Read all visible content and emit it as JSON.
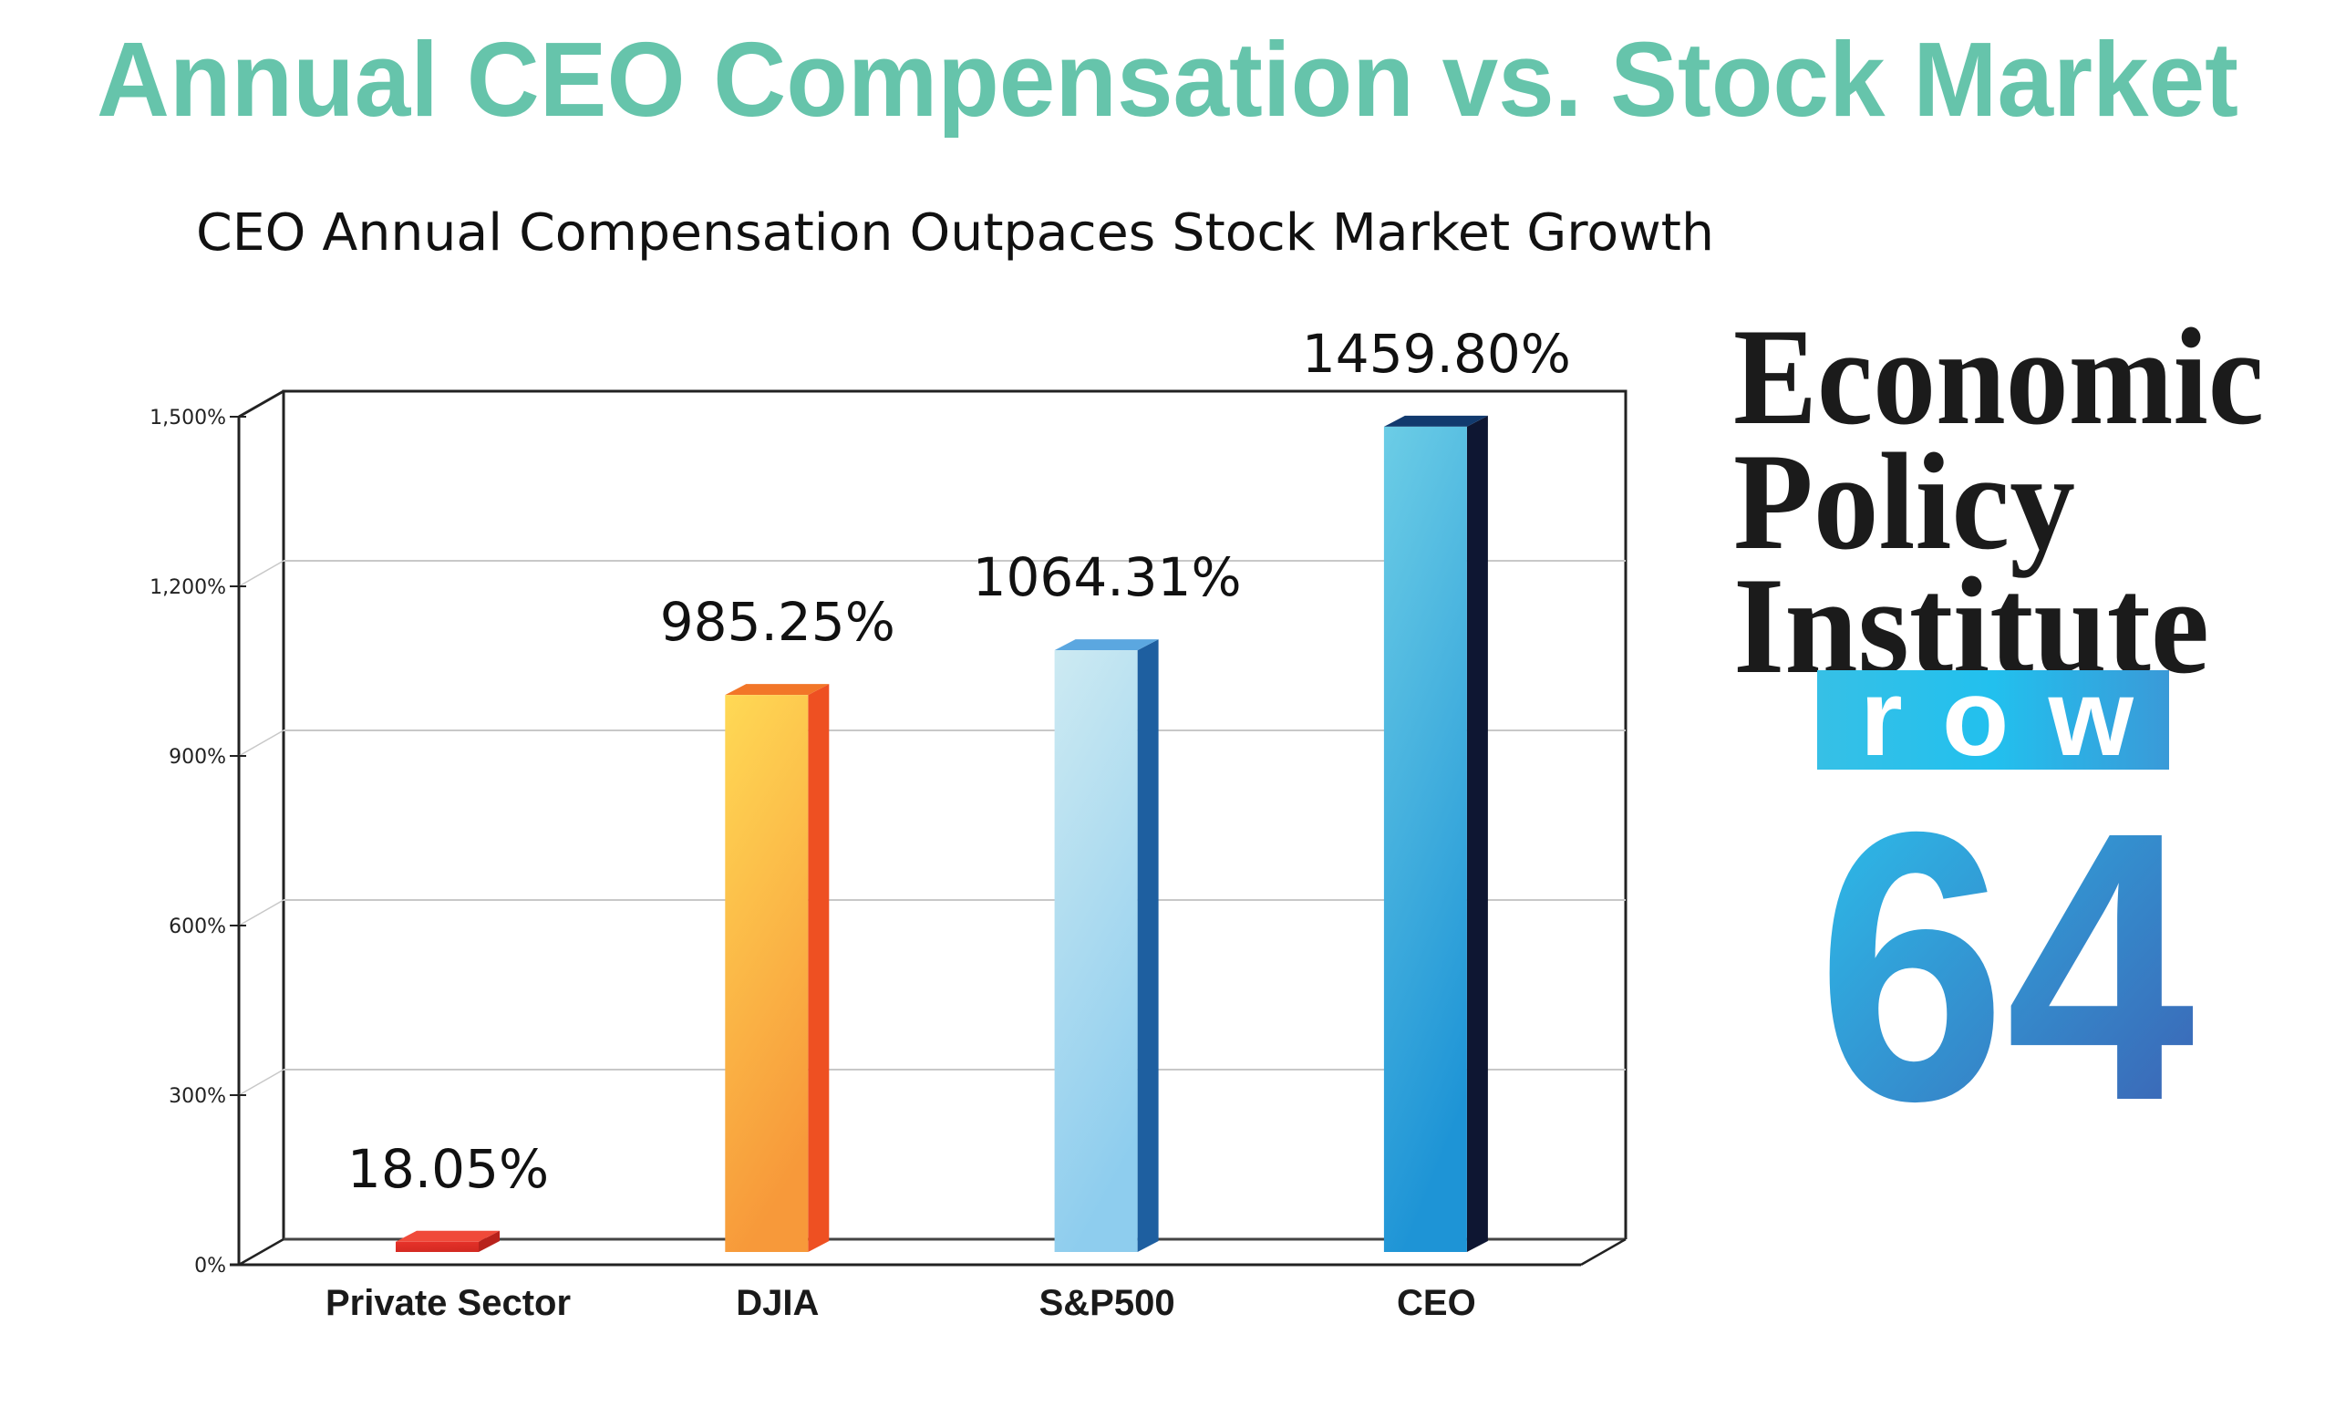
{
  "header": {
    "title": "Annual CEO Compensation vs. Stock Market",
    "title_color": "#66C4AB"
  },
  "chart_data": {
    "type": "bar",
    "title": "CEO Annual Compensation Outpaces Stock Market Growth",
    "xlabel": "",
    "ylabel": "",
    "categories": [
      "Private Sector",
      "DJIA",
      "S&P500",
      "CEO"
    ],
    "values": [
      18.05,
      985.25,
      1064.31,
      1459.8
    ],
    "value_labels": [
      "18.05%",
      "985.25%",
      "1064.31%",
      "1459.80%"
    ],
    "ylim": [
      0,
      1500
    ],
    "yticks": [
      0,
      300,
      600,
      900,
      1200,
      1500
    ],
    "ytick_labels": [
      "0%",
      "300%",
      "600%",
      "900%",
      "1,200%",
      "1,500%"
    ],
    "grid": true,
    "style": "3d-column",
    "bar_colors": [
      {
        "front_top": "#E8322A",
        "front_bottom": "#D42A22",
        "side": "#B8221C",
        "cap": "#F04A3A"
      },
      {
        "front_top": "#FFD955",
        "front_bottom": "#F7993A",
        "side": "#EE5022",
        "cap": "#F27628"
      },
      {
        "front_top": "#CDEAF2",
        "front_bottom": "#8ECDEE",
        "side": "#1E5FA0",
        "cap": "#5BA7E0"
      },
      {
        "front_top": "#6CCDE6",
        "front_bottom": "#1E94D6",
        "side": "#0E1632",
        "cap": "#123A6E"
      }
    ]
  },
  "logo": {
    "lines": [
      "Economic",
      "Policy",
      "Institute"
    ]
  },
  "badge": {
    "row_label": "row",
    "number": "64",
    "gradient_start": "#2BC4EE",
    "gradient_end": "#3D5CB0"
  }
}
